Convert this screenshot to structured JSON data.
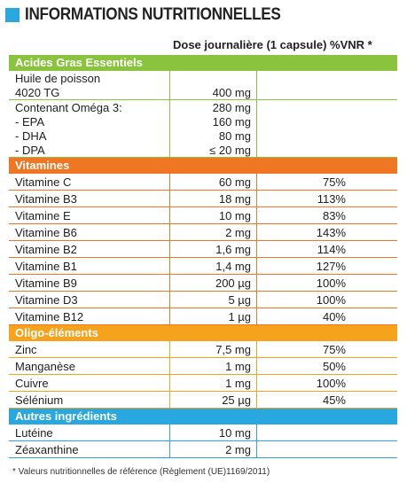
{
  "title": "INFORMATIONS NUTRITIONNELLES",
  "column_header": "Dose journalière (1 capsule) %VNR *",
  "colors": {
    "green": "#8ac43f",
    "orange": "#ef7622",
    "amber": "#f5a21d",
    "blue": "#29a8e0"
  },
  "sections": {
    "acides": {
      "label": "Acides Gras Essentiels",
      "huile_line1": "Huile de poisson",
      "huile_line2": "4020 TG",
      "huile_dose": "400 mg",
      "contenant_label": "Contenant Oméga 3:",
      "contenant_dose": "280 mg",
      "epa_label": "- EPA",
      "epa_dose": "160 mg",
      "dha_label": "- DHA",
      "dha_dose": "80 mg",
      "dpa_label": "- DPA",
      "dpa_dose": "≤ 20 mg"
    },
    "vitamines": {
      "label": "Vitamines",
      "rows": [
        {
          "name": "Vitamine C",
          "dose": "60 mg",
          "vnr": "75%"
        },
        {
          "name": "Vitamine B3",
          "dose": "18 mg",
          "vnr": "113%"
        },
        {
          "name": "Vitamine E",
          "dose": "10 mg",
          "vnr": "83%"
        },
        {
          "name": "Vitamine B6",
          "dose": "2 mg",
          "vnr": "143%"
        },
        {
          "name": "Vitamine B2",
          "dose": "1,6 mg",
          "vnr": "114%"
        },
        {
          "name": "Vitamine B1",
          "dose": "1,4 mg",
          "vnr": "127%"
        },
        {
          "name": "Vitamine B9",
          "dose": "200 µg",
          "vnr": "100%"
        },
        {
          "name": "Vitamine D3",
          "dose": "5 µg",
          "vnr": "100%"
        },
        {
          "name": "Vitamine B12",
          "dose": "1 µg",
          "vnr": "40%"
        }
      ]
    },
    "oligo": {
      "label": "Oligo-éléments",
      "rows": [
        {
          "name": "Zinc",
          "dose": "7,5 mg",
          "vnr": "75%"
        },
        {
          "name": "Manganèse",
          "dose": "1 mg",
          "vnr": "50%"
        },
        {
          "name": "Cuivre",
          "dose": "1 mg",
          "vnr": "100%"
        },
        {
          "name": "Sélénium",
          "dose": "25 µg",
          "vnr": "45%"
        }
      ]
    },
    "autres": {
      "label": "Autres ingrédients",
      "rows": [
        {
          "name": "Lutéine",
          "dose": "10 mg",
          "vnr": ""
        },
        {
          "name": "Zéaxanthine",
          "dose": "2 mg",
          "vnr": ""
        }
      ]
    }
  },
  "footnote": "* Valeurs nutritionnelles de référence (Règlement (UE)1169/2011)"
}
